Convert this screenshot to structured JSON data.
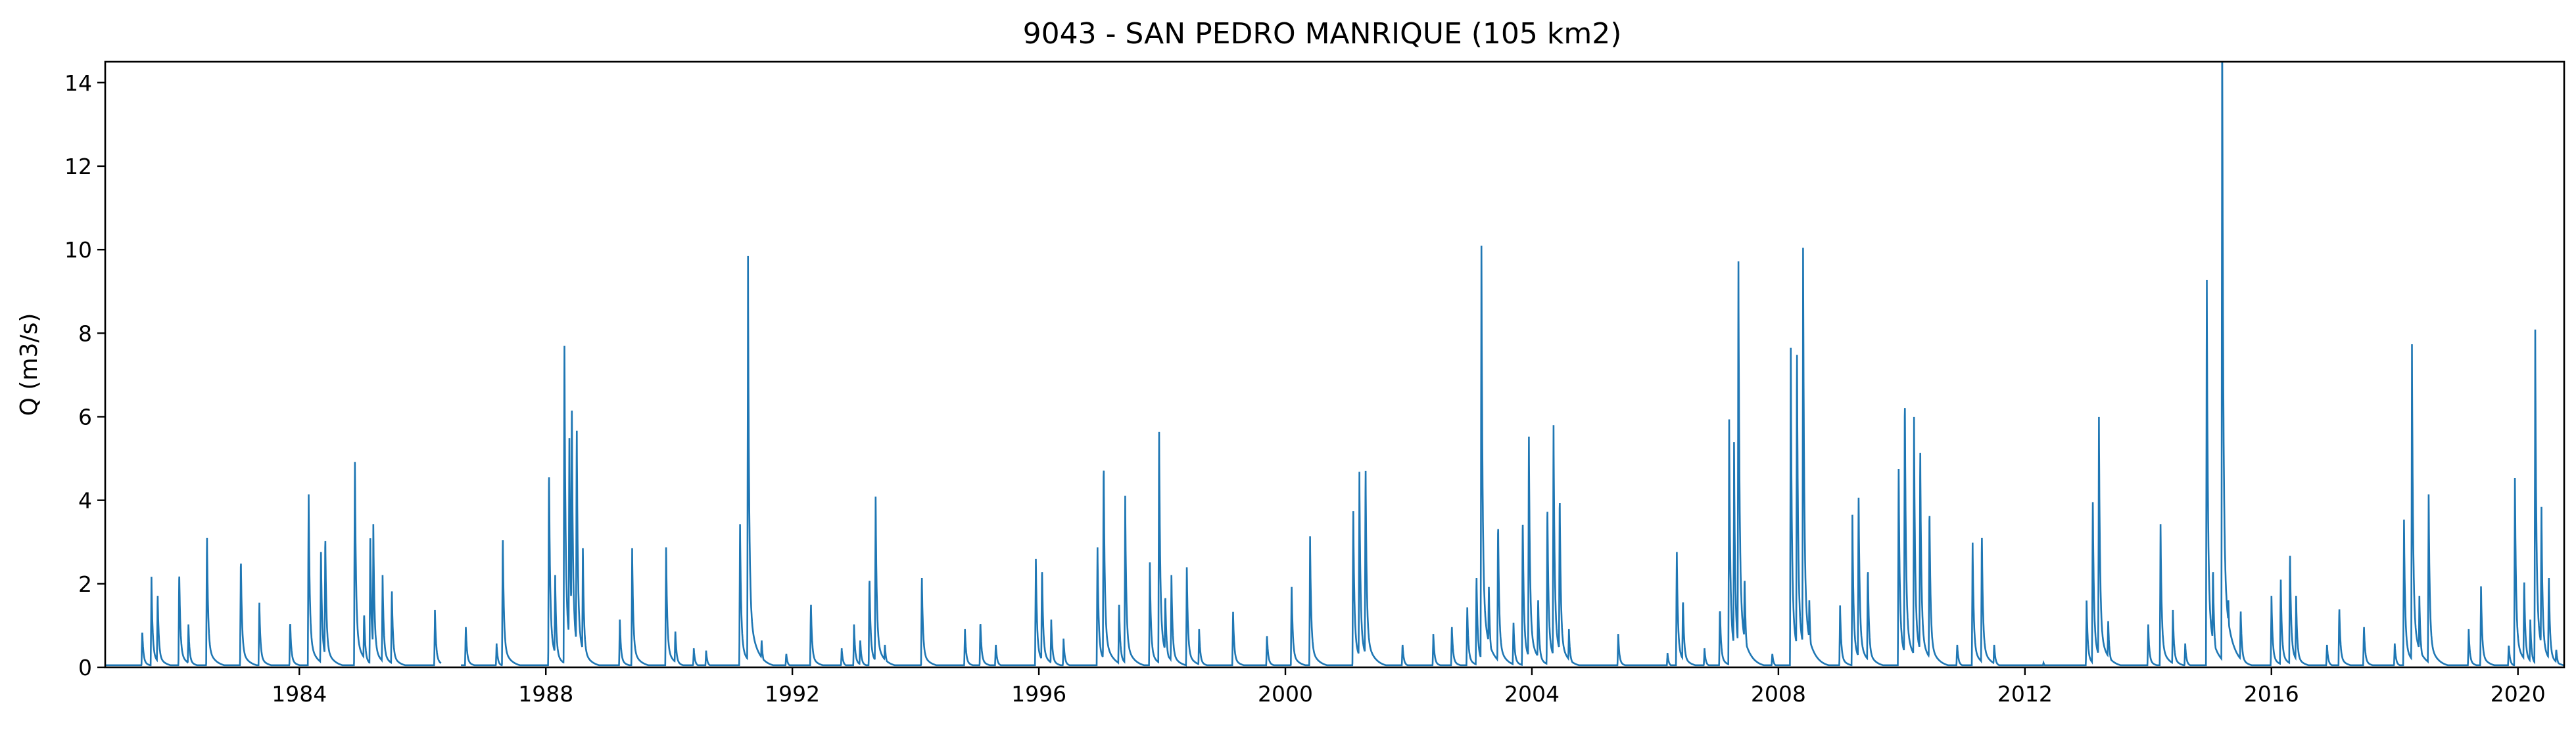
{
  "chart_data": {
    "type": "line",
    "title": "9043 - SAN PEDRO MANRIQUE (105 km2)",
    "xlabel": "",
    "ylabel": "Q (m3/s)",
    "xlim": [
      1980.85,
      2020.75
    ],
    "ylim": [
      0,
      14.5
    ],
    "xticks": [
      1984,
      1988,
      1992,
      1996,
      2000,
      2004,
      2008,
      2012,
      2016,
      2020
    ],
    "yticks": [
      0,
      2,
      4,
      6,
      8,
      10,
      12,
      14
    ],
    "grid": false,
    "legend": "none",
    "line_color": "#1f77b4",
    "base_flow": 0.05,
    "gaps": [
      [
        1986.3,
        1986.62
      ]
    ],
    "peaks": [
      [
        1981.45,
        0.8
      ],
      [
        1981.6,
        1.9
      ],
      [
        1981.7,
        1.6
      ],
      [
        1982.05,
        2.1
      ],
      [
        1982.2,
        0.9
      ],
      [
        1982.5,
        2.9
      ],
      [
        1983.05,
        2.4
      ],
      [
        1983.35,
        1.4
      ],
      [
        1983.85,
        1.0
      ],
      [
        1984.15,
        3.75
      ],
      [
        1984.35,
        2.5
      ],
      [
        1984.42,
        2.9
      ],
      [
        1984.9,
        4.6
      ],
      [
        1985.05,
        1.2
      ],
      [
        1985.15,
        2.8
      ],
      [
        1985.2,
        3.0
      ],
      [
        1985.35,
        2.0
      ],
      [
        1985.5,
        1.7
      ],
      [
        1986.2,
        1.2
      ],
      [
        1986.7,
        0.9
      ],
      [
        1987.2,
        0.5
      ],
      [
        1987.3,
        2.85
      ],
      [
        1988.05,
        4.4
      ],
      [
        1988.15,
        2.0
      ],
      [
        1988.3,
        7.2
      ],
      [
        1988.38,
        5.0
      ],
      [
        1988.42,
        5.9
      ],
      [
        1988.5,
        5.3
      ],
      [
        1988.6,
        2.5
      ],
      [
        1989.2,
        1.0
      ],
      [
        1989.4,
        2.5
      ],
      [
        1989.95,
        2.6
      ],
      [
        1990.1,
        0.8
      ],
      [
        1990.4,
        0.4
      ],
      [
        1990.6,
        0.35
      ],
      [
        1991.15,
        3.1
      ],
      [
        1991.28,
        8.4
      ],
      [
        1991.5,
        0.6
      ],
      [
        1991.9,
        0.3
      ],
      [
        1992.3,
        1.4
      ],
      [
        1992.8,
        0.4
      ],
      [
        1993.0,
        0.9
      ],
      [
        1993.1,
        0.6
      ],
      [
        1993.25,
        2.0
      ],
      [
        1993.35,
        3.7
      ],
      [
        1993.5,
        0.5
      ],
      [
        1994.1,
        2.0
      ],
      [
        1994.8,
        0.8
      ],
      [
        1995.05,
        1.0
      ],
      [
        1995.3,
        0.5
      ],
      [
        1995.95,
        2.35
      ],
      [
        1996.05,
        2.2
      ],
      [
        1996.2,
        1.0
      ],
      [
        1996.4,
        0.6
      ],
      [
        1996.95,
        2.6
      ],
      [
        1997.05,
        4.55
      ],
      [
        1997.3,
        1.4
      ],
      [
        1997.4,
        3.6
      ],
      [
        1997.8,
        2.2
      ],
      [
        1997.95,
        5.1
      ],
      [
        1998.05,
        1.6
      ],
      [
        1998.15,
        2.0
      ],
      [
        1998.4,
        2.1
      ],
      [
        1998.6,
        0.8
      ],
      [
        1999.15,
        1.2
      ],
      [
        1999.7,
        0.7
      ],
      [
        2000.1,
        1.8
      ],
      [
        2000.4,
        2.75
      ],
      [
        2001.1,
        3.5
      ],
      [
        2001.2,
        4.1
      ],
      [
        2001.3,
        4.4
      ],
      [
        2001.9,
        0.5
      ],
      [
        2002.4,
        0.7
      ],
      [
        2002.7,
        0.9
      ],
      [
        2002.95,
        1.3
      ],
      [
        2003.1,
        2.0
      ],
      [
        2003.18,
        9.2
      ],
      [
        2003.3,
        1.8
      ],
      [
        2003.45,
        3.2
      ],
      [
        2003.7,
        1.0
      ],
      [
        2003.85,
        3.3
      ],
      [
        2003.95,
        5.0
      ],
      [
        2004.1,
        1.5
      ],
      [
        2004.25,
        3.6
      ],
      [
        2004.35,
        5.25
      ],
      [
        2004.45,
        3.8
      ],
      [
        2004.6,
        0.8
      ],
      [
        2005.4,
        0.7
      ],
      [
        2006.2,
        0.3
      ],
      [
        2006.35,
        2.5
      ],
      [
        2006.45,
        1.5
      ],
      [
        2006.8,
        0.4
      ],
      [
        2007.05,
        1.3
      ],
      [
        2007.2,
        5.2
      ],
      [
        2007.28,
        4.6
      ],
      [
        2007.35,
        8.8
      ],
      [
        2007.45,
        2.0
      ],
      [
        2007.9,
        0.3
      ],
      [
        2008.2,
        6.7
      ],
      [
        2008.3,
        7.0
      ],
      [
        2008.4,
        8.8
      ],
      [
        2008.5,
        1.5
      ],
      [
        2009.0,
        1.3
      ],
      [
        2009.2,
        3.2
      ],
      [
        2009.3,
        3.8
      ],
      [
        2009.45,
        2.2
      ],
      [
        2009.95,
        4.3
      ],
      [
        2010.05,
        6.0
      ],
      [
        2010.2,
        5.25
      ],
      [
        2010.3,
        4.8
      ],
      [
        2010.45,
        3.5
      ],
      [
        2010.9,
        0.5
      ],
      [
        2011.15,
        2.7
      ],
      [
        2011.3,
        2.9
      ],
      [
        2011.5,
        0.5
      ],
      [
        2012.3,
        0.1
      ],
      [
        2013.0,
        1.4
      ],
      [
        2013.1,
        3.7
      ],
      [
        2013.2,
        5.25
      ],
      [
        2013.35,
        1.0
      ],
      [
        2014.0,
        0.9
      ],
      [
        2014.2,
        3.0
      ],
      [
        2014.4,
        1.2
      ],
      [
        2014.6,
        0.5
      ],
      [
        2014.95,
        8.4
      ],
      [
        2015.05,
        2.2
      ],
      [
        2015.2,
        13.8
      ],
      [
        2015.3,
        1.5
      ],
      [
        2015.5,
        1.25
      ],
      [
        2016.0,
        1.5
      ],
      [
        2016.15,
        1.9
      ],
      [
        2016.3,
        2.5
      ],
      [
        2016.4,
        1.5
      ],
      [
        2016.9,
        0.5
      ],
      [
        2017.1,
        1.3
      ],
      [
        2017.5,
        0.9
      ],
      [
        2018.0,
        0.5
      ],
      [
        2018.15,
        3.2
      ],
      [
        2018.28,
        6.6
      ],
      [
        2018.4,
        1.5
      ],
      [
        2018.55,
        3.75
      ],
      [
        2019.2,
        0.8
      ],
      [
        2019.4,
        1.7
      ],
      [
        2019.85,
        0.5
      ],
      [
        2019.95,
        4.1
      ],
      [
        2020.1,
        1.9
      ],
      [
        2020.2,
        1.0
      ],
      [
        2020.28,
        6.9
      ],
      [
        2020.38,
        3.5
      ],
      [
        2020.5,
        2.0
      ],
      [
        2020.62,
        0.4
      ]
    ]
  }
}
